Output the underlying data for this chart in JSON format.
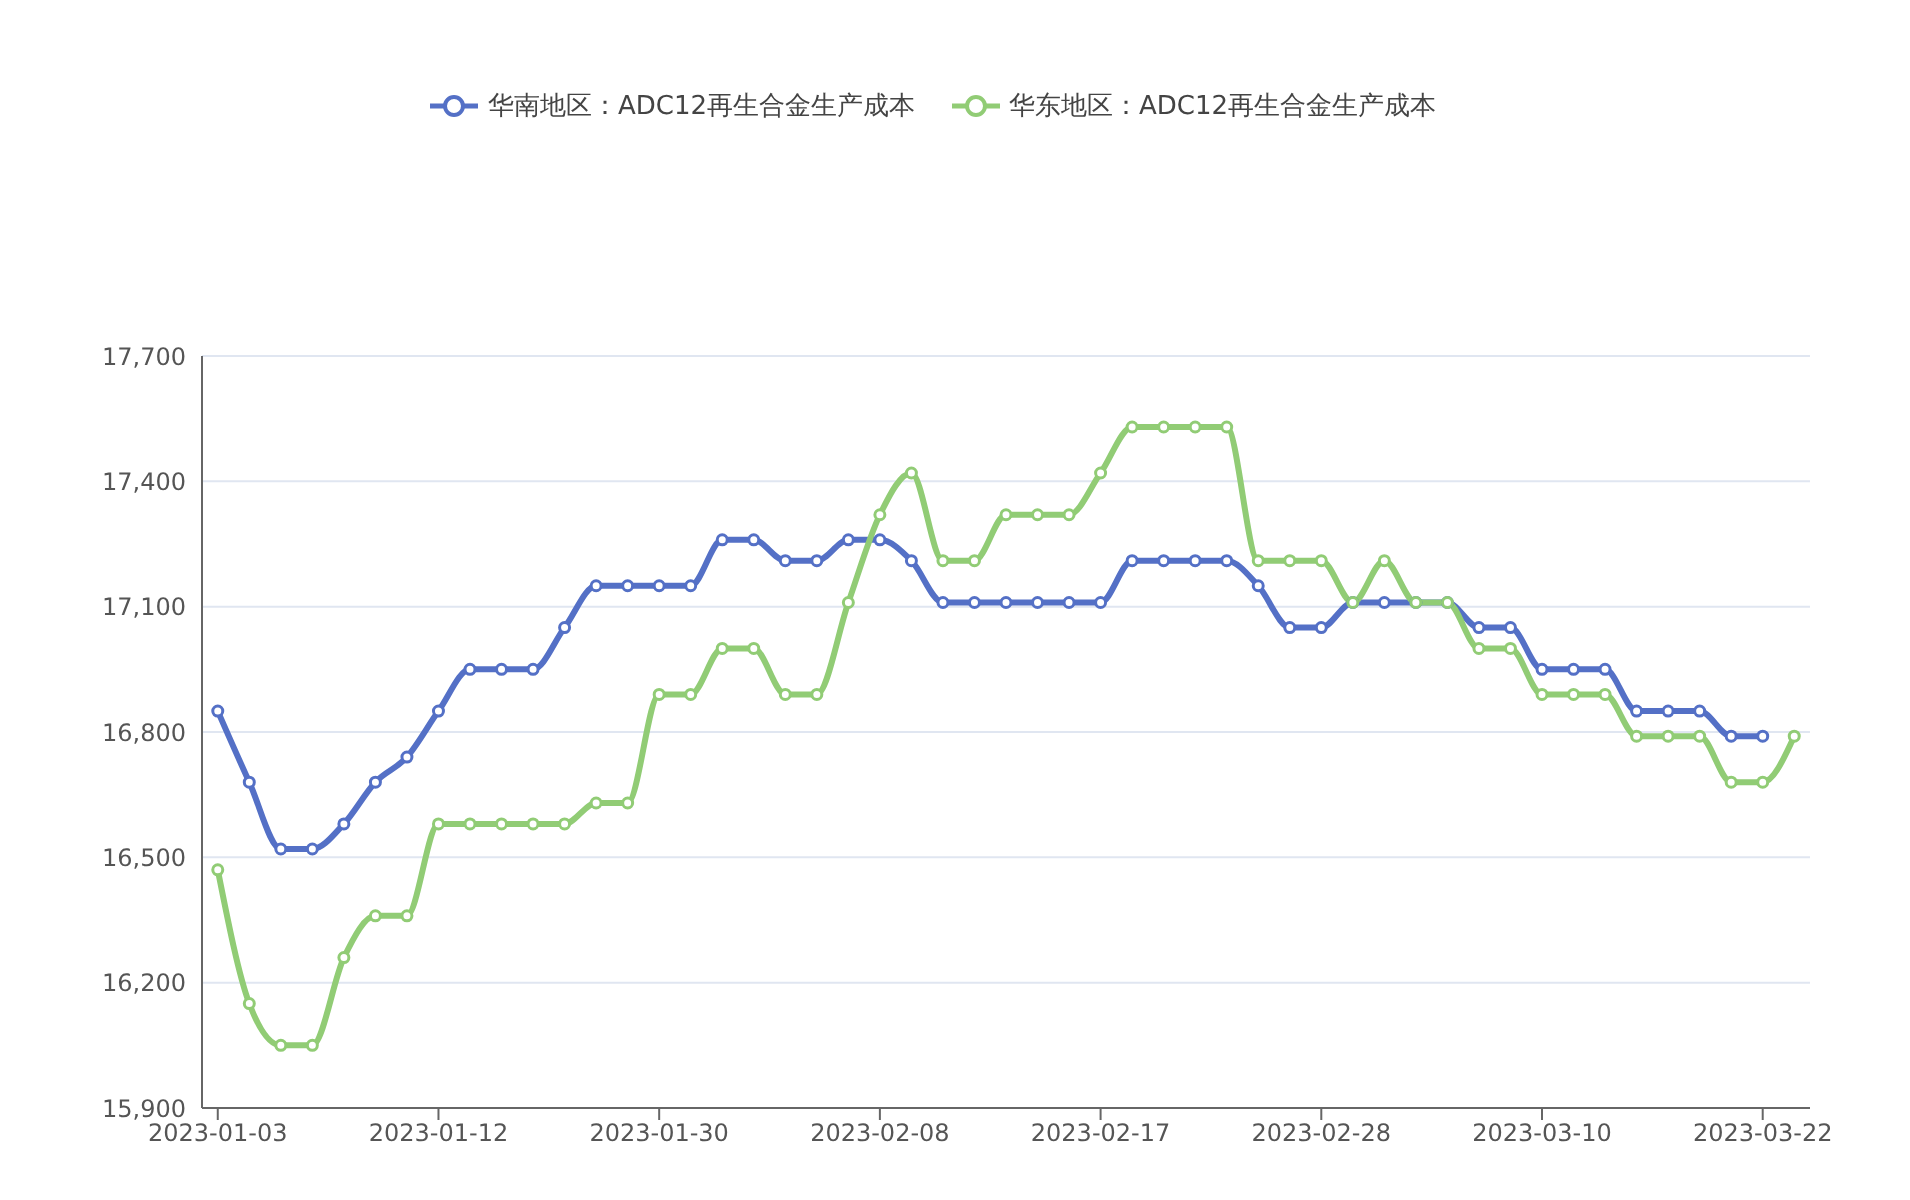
{
  "chart_data": {
    "type": "line",
    "categories": [
      "2023-01-03",
      null,
      null,
      null,
      null,
      null,
      null,
      "2023-01-12",
      null,
      null,
      null,
      null,
      null,
      null,
      "2023-01-30",
      null,
      null,
      null,
      null,
      null,
      null,
      "2023-02-08",
      null,
      null,
      null,
      null,
      null,
      null,
      "2023-02-17",
      null,
      null,
      null,
      null,
      null,
      null,
      "2023-02-28",
      null,
      null,
      null,
      null,
      null,
      null,
      "2023-03-10",
      null,
      null,
      null,
      null,
      null,
      null,
      "2023-03-22",
      null
    ],
    "series": [
      {
        "name": "华南地区：ADC12再生合金生产成本",
        "color": "#5470c6",
        "values": [
          16850,
          16680,
          16520,
          16520,
          16580,
          16680,
          16740,
          16850,
          16950,
          16950,
          16950,
          17050,
          17150,
          17150,
          17150,
          17150,
          17260,
          17260,
          17210,
          17210,
          17260,
          17260,
          17210,
          17110,
          17110,
          17110,
          17110,
          17110,
          17110,
          17210,
          17210,
          17210,
          17210,
          17150,
          17050,
          17050,
          17110,
          17110,
          17110,
          17110,
          17050,
          17050,
          16950,
          16950,
          16950,
          16850,
          16850,
          16850,
          16790,
          16790,
          null
        ]
      },
      {
        "name": "华东地区：ADC12再生合金生产成本",
        "color": "#91cc75",
        "values": [
          16470,
          16150,
          16050,
          16050,
          16260,
          16360,
          16360,
          16580,
          16580,
          16580,
          16580,
          16580,
          16630,
          16630,
          16890,
          16890,
          17000,
          17000,
          16890,
          16890,
          17110,
          17320,
          17420,
          17210,
          17210,
          17320,
          17320,
          17320,
          17420,
          17530,
          17530,
          17530,
          17530,
          17210,
          17210,
          17210,
          17110,
          17210,
          17110,
          17110,
          17000,
          17000,
          16890,
          16890,
          16890,
          16790,
          16790,
          16790,
          16680,
          16680,
          16790
        ]
      }
    ],
    "ylim": [
      15900,
      17700
    ],
    "yticks": [
      {
        "value": 15900,
        "label": "15,900"
      },
      {
        "value": 16200,
        "label": "16,200"
      },
      {
        "value": 16500,
        "label": "16,500"
      },
      {
        "value": 16800,
        "label": "16,800"
      },
      {
        "value": 17100,
        "label": "17,100"
      },
      {
        "value": 17400,
        "label": "17,400"
      },
      {
        "value": 17700,
        "label": "17,700"
      }
    ],
    "grid": "y",
    "legend": "top",
    "marker": "circle",
    "line_style": "solid"
  }
}
